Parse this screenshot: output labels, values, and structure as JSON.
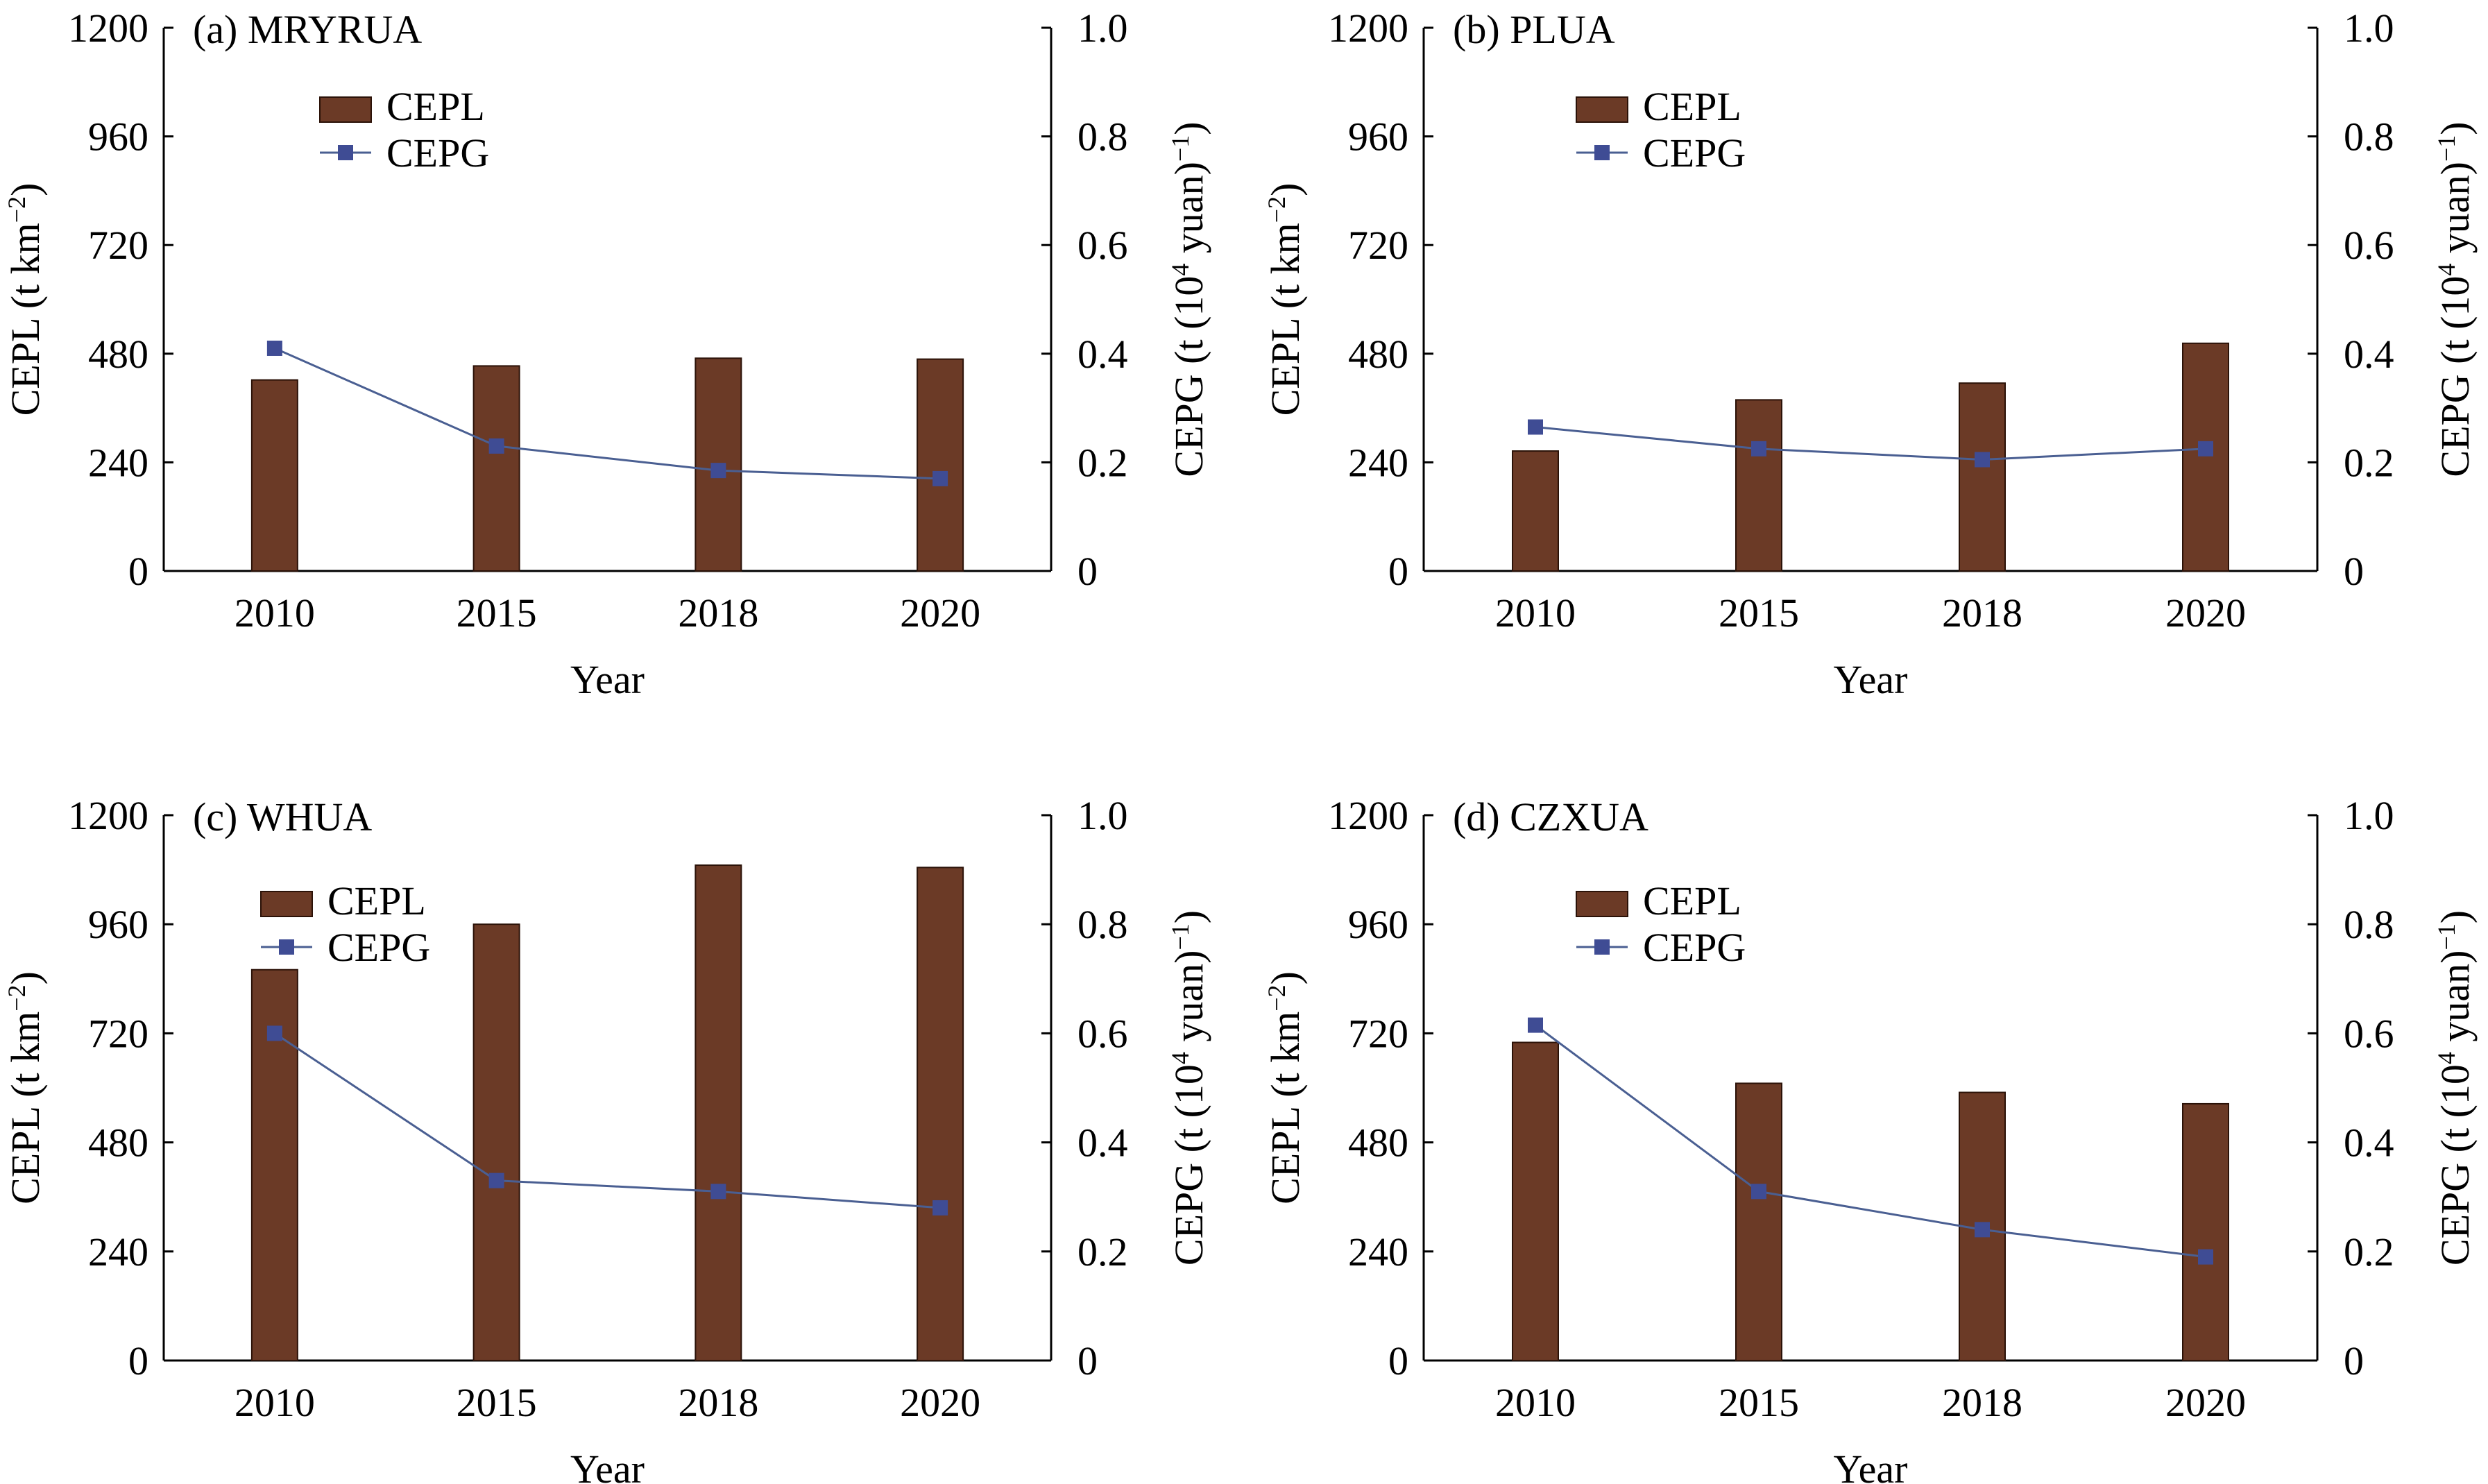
{
  "chart_data": [
    {
      "type": "bar+line",
      "panel_label": "(a) MRYRUA",
      "categories": [
        "2010",
        "2015",
        "2018",
        "2020"
      ],
      "xlabel": "Year",
      "ylabel_left": "CEPL (t km",
      "ylabel_left_sup": "−2",
      "ylabel_left_end": ")",
      "ylabel_right": "CEPG (t (10",
      "ylabel_right_sup1": "4",
      "ylabel_right_mid": " yuan)",
      "ylabel_right_sup2": "−1",
      "ylabel_right_end": ")",
      "ylim_left": [
        0,
        1200
      ],
      "yticks_left": [
        "0",
        "240",
        "480",
        "720",
        "960",
        "1200"
      ],
      "ylim_right": [
        0,
        1.0
      ],
      "yticks_right": [
        "0",
        "0.2",
        "0.4",
        "0.6",
        "0.8",
        "1.0"
      ],
      "legend_placement": "top-left",
      "series": [
        {
          "name": "CEPL",
          "kind": "bar",
          "axis": "left",
          "values": [
            422,
            453,
            470,
            468
          ]
        },
        {
          "name": "CEPG",
          "kind": "line",
          "axis": "right",
          "values": [
            0.41,
            0.23,
            0.185,
            0.17
          ]
        }
      ]
    },
    {
      "type": "bar+line",
      "panel_label": "(b) PLUA",
      "categories": [
        "2010",
        "2015",
        "2018",
        "2020"
      ],
      "xlabel": "Year",
      "ylabel_left": "CEPL (t km",
      "ylabel_left_sup": "−2",
      "ylabel_left_end": ")",
      "ylabel_right": "CEPG (t (10",
      "ylabel_right_sup1": "4",
      "ylabel_right_mid": " yuan)",
      "ylabel_right_sup2": "−1",
      "ylabel_right_end": ")",
      "ylim_left": [
        0,
        1200
      ],
      "yticks_left": [
        "0",
        "240",
        "480",
        "720",
        "960",
        "1200"
      ],
      "ylim_right": [
        0,
        1.0
      ],
      "yticks_right": [
        "0",
        "0.2",
        "0.4",
        "0.6",
        "0.8",
        "1.0"
      ],
      "legend_placement": "top-left",
      "series": [
        {
          "name": "CEPL",
          "kind": "bar",
          "axis": "left",
          "values": [
            265,
            378,
            415,
            503
          ]
        },
        {
          "name": "CEPG",
          "kind": "line",
          "axis": "right",
          "values": [
            0.265,
            0.225,
            0.205,
            0.225
          ]
        }
      ]
    },
    {
      "type": "bar+line",
      "panel_label": "(c) WHUA",
      "categories": [
        "2010",
        "2015",
        "2018",
        "2020"
      ],
      "xlabel": "Year",
      "ylabel_left": "CEPL (t km",
      "ylabel_left_sup": "−2",
      "ylabel_left_end": ")",
      "ylabel_right": "CEPG (t (10",
      "ylabel_right_sup1": "4",
      "ylabel_right_mid": " yuan)",
      "ylabel_right_sup2": "−1",
      "ylabel_right_end": ")",
      "ylim_left": [
        0,
        1200
      ],
      "yticks_left": [
        "0",
        "240",
        "480",
        "720",
        "960",
        "1200"
      ],
      "ylim_right": [
        0,
        1.0
      ],
      "yticks_right": [
        "0",
        "0.2",
        "0.4",
        "0.6",
        "0.8",
        "1.0"
      ],
      "legend_placement": "top-left",
      "series": [
        {
          "name": "CEPL",
          "kind": "bar",
          "axis": "left",
          "values": [
            860,
            960,
            1090,
            1085
          ]
        },
        {
          "name": "CEPG",
          "kind": "line",
          "axis": "right",
          "values": [
            0.6,
            0.33,
            0.31,
            0.28
          ]
        }
      ]
    },
    {
      "type": "bar+line",
      "panel_label": "(d) CZXUA",
      "categories": [
        "2010",
        "2015",
        "2018",
        "2020"
      ],
      "xlabel": "Year",
      "ylabel_left": "CEPL (t km",
      "ylabel_left_sup": "−2",
      "ylabel_left_end": ")",
      "ylabel_right": "CEPG (t (10",
      "ylabel_right_sup1": "4",
      "ylabel_right_mid": " yuan)",
      "ylabel_right_sup2": "−1",
      "ylabel_right_end": ")",
      "ylim_left": [
        0,
        1200
      ],
      "yticks_left": [
        "0",
        "240",
        "480",
        "720",
        "960",
        "1200"
      ],
      "ylim_right": [
        0,
        1.0
      ],
      "yticks_right": [
        "0",
        "0.2",
        "0.4",
        "0.6",
        "0.8",
        "1.0"
      ],
      "legend_placement": "top-left",
      "series": [
        {
          "name": "CEPL",
          "kind": "bar",
          "axis": "left",
          "values": [
            700,
            610,
            590,
            565
          ]
        },
        {
          "name": "CEPG",
          "kind": "line",
          "axis": "right",
          "values": [
            0.615,
            0.31,
            0.24,
            0.19
          ]
        }
      ]
    }
  ],
  "colors": {
    "bar_fill": "#6b3a26",
    "bar_stroke": "#2b1208",
    "line": "#4a5f92",
    "marker": "#3f4c94",
    "axis": "#000000"
  }
}
